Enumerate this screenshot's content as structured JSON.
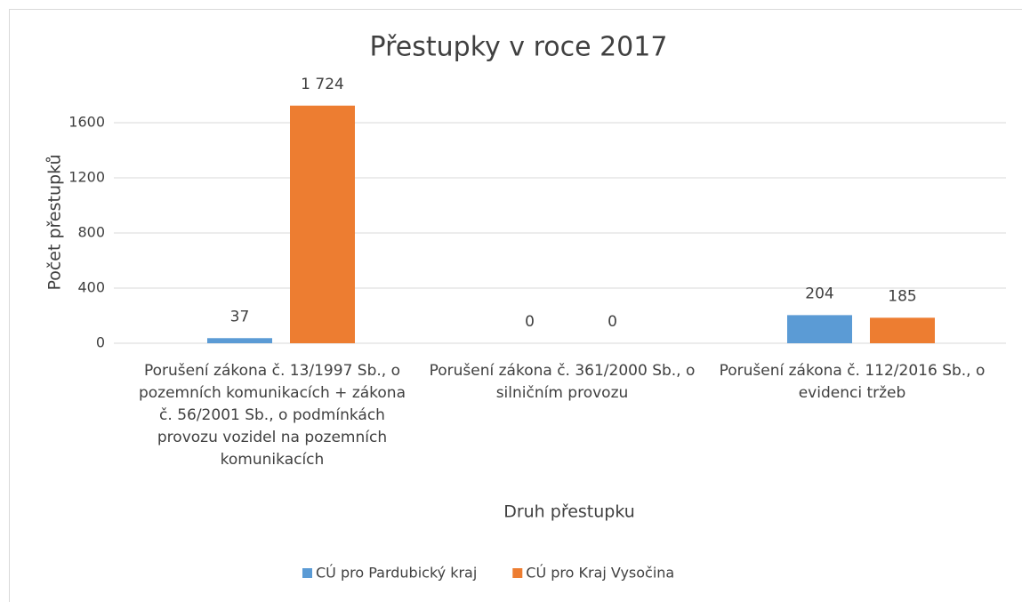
{
  "chart_data": {
    "type": "bar",
    "title": "Přestupky v roce 2017",
    "x_label": "Druh přestupku",
    "y_label": "Počet přestupků",
    "categories": [
      "Porušení zákona č. 13/1997 Sb., o pozemních komunikacích + zákona č. 56/2001 Sb., o podmínkách provozu vozidel na pozemních komunikacích",
      "Porušení zákona č. 361/2000 Sb., o silničním provozu",
      "Porušení zákona č. 112/2016 Sb., o evidenci tržeb"
    ],
    "series": [
      {
        "name": "CÚ pro Pardubický kraj",
        "color": "#5b9bd5",
        "values": [
          37,
          0,
          204
        ],
        "value_labels": [
          "37",
          "0",
          "204"
        ]
      },
      {
        "name": "CÚ pro Kraj Vysočina",
        "color": "#ed7d31",
        "values": [
          1724,
          0,
          185
        ],
        "value_labels": [
          "1 724",
          "0",
          "185"
        ]
      }
    ],
    "ylim": [
      0,
      1800
    ],
    "yticks": [
      0,
      400,
      800,
      1200,
      1600
    ],
    "grid": true,
    "legend": "bottom"
  }
}
